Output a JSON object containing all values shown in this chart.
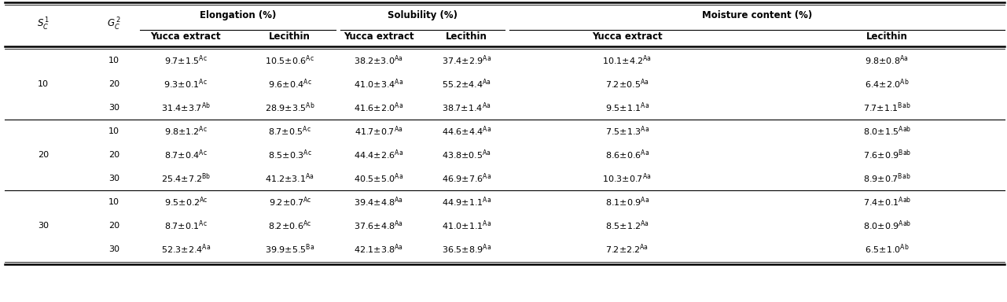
{
  "data": [
    [
      "9.7±1.5",
      "Ac",
      "10.5±0.6",
      "Ac",
      "38.2±3.0",
      "Aa",
      "37.4±2.9",
      "Aa",
      "10.1±4.2",
      "Aa",
      "9.8±0.8",
      "Aa"
    ],
    [
      "9.3±0.1",
      "Ac",
      "9.6±0.4",
      "Ac",
      "41.0±3.4",
      "Aa",
      "55.2±4.4",
      "Aa",
      "7.2±0.5",
      "Aa",
      "6.4±2.0",
      "Ab"
    ],
    [
      "31.4±3.7",
      "Ab",
      "28.9±3.5",
      "Ab",
      "41.6±2.0",
      "Aa",
      "38.7±1.4",
      "Aa",
      "9.5±1.1",
      "Aa",
      "7.7±1.1",
      "Bab"
    ],
    [
      "9.8±1.2",
      "Ac",
      "8.7±0.5",
      "Ac",
      "41.7±0.7",
      "Aa",
      "44.6±4.4",
      "Aa",
      "7.5±1.3",
      "Aa",
      "8.0±1.5",
      "Aab"
    ],
    [
      "8.7±0.4",
      "Ac",
      "8.5±0.3",
      "Ac",
      "44.4±2.6",
      "Aa",
      "43.8±0.5",
      "Aa",
      "8.6±0.6",
      "Aa",
      "7.6±0.9",
      "Bab"
    ],
    [
      "25.4±7.2",
      "Bb",
      "41.2±3.1",
      "Aa",
      "40.5±5.0",
      "Aa",
      "46.9±7.6",
      "Aa",
      "10.3±0.7",
      "Aa",
      "8.9±0.7",
      "Bab"
    ],
    [
      "9.5±0.2",
      "Ac",
      "9.2±0.7",
      "Ac",
      "39.4±4.8",
      "Aa",
      "44.9±1.1",
      "Aa",
      "8.1±0.9",
      "Aa",
      "7.4±0.1",
      "Aab"
    ],
    [
      "8.7±0.1",
      "Ac",
      "8.2±0.6",
      "Ac",
      "37.6±4.8",
      "Aa",
      "41.0±1.1",
      "Aa",
      "8.5±1.2",
      "Aa",
      "8.0±0.9",
      "Aab"
    ],
    [
      "52.3±2.4",
      "Aa",
      "39.9±5.5",
      "Ba",
      "42.1±3.8",
      "Aa",
      "36.5±8.9",
      "Aa",
      "7.2±2.2",
      "Aa",
      "6.5±1.0",
      "Ab"
    ]
  ],
  "sc_labels": [
    "10",
    "20",
    "30"
  ],
  "gc_labels": [
    "10",
    "20",
    "30",
    "10",
    "20",
    "30",
    "10",
    "20",
    "30"
  ],
  "level1_headers": [
    "Elongation (%)",
    "Solubility (%)",
    "Moisture content (%)"
  ],
  "level2_headers": [
    "Yucca extract",
    "Lecithin",
    "Yucca extract",
    "Lecithin",
    "Yucca extract",
    "Lecithin"
  ],
  "bg_color": "#ffffff",
  "figsize": [
    12.81,
    3.84
  ],
  "dpi": 100
}
